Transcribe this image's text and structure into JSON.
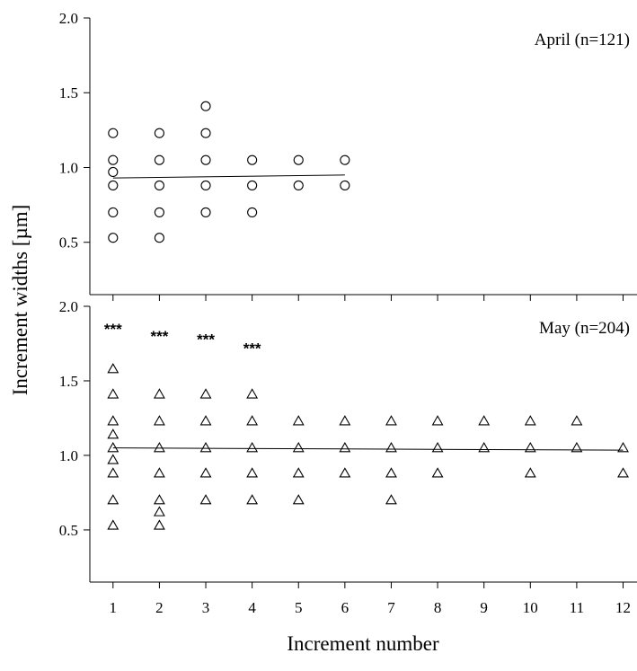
{
  "chart_data": {
    "type": "scatter",
    "xlabel": "Increment number",
    "ylabel": "Increment widths [µm]",
    "xlim": [
      0.5,
      12.3
    ],
    "x_ticks": [
      1,
      2,
      3,
      4,
      5,
      6,
      7,
      8,
      9,
      10,
      11,
      12
    ],
    "panels": [
      {
        "name": "april",
        "label": "April (n=121)",
        "ylim": [
          0.15,
          2.0
        ],
        "y_ticks": [
          "0.5",
          "1.0",
          "1.5",
          "2.0"
        ],
        "y_tick_values": [
          0.5,
          1.0,
          1.5,
          2.0
        ],
        "marker": "circle",
        "show_x_tick_labels": false,
        "points": [
          [
            1,
            0.53
          ],
          [
            1,
            0.7
          ],
          [
            1,
            0.88
          ],
          [
            1,
            0.97
          ],
          [
            1,
            1.05
          ],
          [
            1,
            1.23
          ],
          [
            2,
            0.53
          ],
          [
            2,
            0.7
          ],
          [
            2,
            0.88
          ],
          [
            2,
            1.05
          ],
          [
            2,
            1.23
          ],
          [
            3,
            0.7
          ],
          [
            3,
            0.88
          ],
          [
            3,
            1.05
          ],
          [
            3,
            1.23
          ],
          [
            3,
            1.41
          ],
          [
            4,
            0.7
          ],
          [
            4,
            0.88
          ],
          [
            4,
            1.05
          ],
          [
            5,
            0.88
          ],
          [
            5,
            1.05
          ],
          [
            6,
            0.88
          ],
          [
            6,
            1.05
          ]
        ],
        "fit_line": [
          [
            1,
            0.93
          ],
          [
            6,
            0.95
          ]
        ],
        "significance": []
      },
      {
        "name": "may",
        "label": "May (n=204)",
        "ylim": [
          0.15,
          2.0
        ],
        "y_ticks": [
          "0.5",
          "1.0",
          "1.5",
          "2.0"
        ],
        "y_tick_values": [
          0.5,
          1.0,
          1.5,
          2.0
        ],
        "marker": "triangle",
        "show_x_tick_labels": true,
        "points": [
          [
            1,
            0.53
          ],
          [
            1,
            0.7
          ],
          [
            1,
            0.88
          ],
          [
            1,
            0.97
          ],
          [
            1,
            1.05
          ],
          [
            1,
            1.14
          ],
          [
            1,
            1.23
          ],
          [
            1,
            1.41
          ],
          [
            1,
            1.58
          ],
          [
            2,
            0.53
          ],
          [
            2,
            0.62
          ],
          [
            2,
            0.7
          ],
          [
            2,
            0.88
          ],
          [
            2,
            1.05
          ],
          [
            2,
            1.23
          ],
          [
            2,
            1.41
          ],
          [
            3,
            0.7
          ],
          [
            3,
            0.88
          ],
          [
            3,
            1.05
          ],
          [
            3,
            1.23
          ],
          [
            3,
            1.41
          ],
          [
            4,
            0.7
          ],
          [
            4,
            0.88
          ],
          [
            4,
            1.05
          ],
          [
            4,
            1.23
          ],
          [
            4,
            1.41
          ],
          [
            5,
            0.7
          ],
          [
            5,
            0.88
          ],
          [
            5,
            1.05
          ],
          [
            5,
            1.23
          ],
          [
            6,
            0.88
          ],
          [
            6,
            1.05
          ],
          [
            6,
            1.23
          ],
          [
            7,
            0.7
          ],
          [
            7,
            0.88
          ],
          [
            7,
            1.05
          ],
          [
            7,
            1.23
          ],
          [
            8,
            0.88
          ],
          [
            8,
            1.05
          ],
          [
            8,
            1.23
          ],
          [
            9,
            1.05
          ],
          [
            9,
            1.23
          ],
          [
            10,
            0.88
          ],
          [
            10,
            1.05
          ],
          [
            10,
            1.23
          ],
          [
            11,
            1.05
          ],
          [
            11,
            1.23
          ],
          [
            12,
            0.88
          ],
          [
            12,
            1.05
          ]
        ],
        "fit_line": [
          [
            1,
            1.05
          ],
          [
            12,
            1.035
          ]
        ],
        "significance": [
          {
            "x": 1,
            "y": 1.85,
            "text": "***"
          },
          {
            "x": 2,
            "y": 1.8,
            "text": "***"
          },
          {
            "x": 3,
            "y": 1.78,
            "text": "***"
          },
          {
            "x": 4,
            "y": 1.72,
            "text": "***"
          }
        ]
      }
    ]
  }
}
